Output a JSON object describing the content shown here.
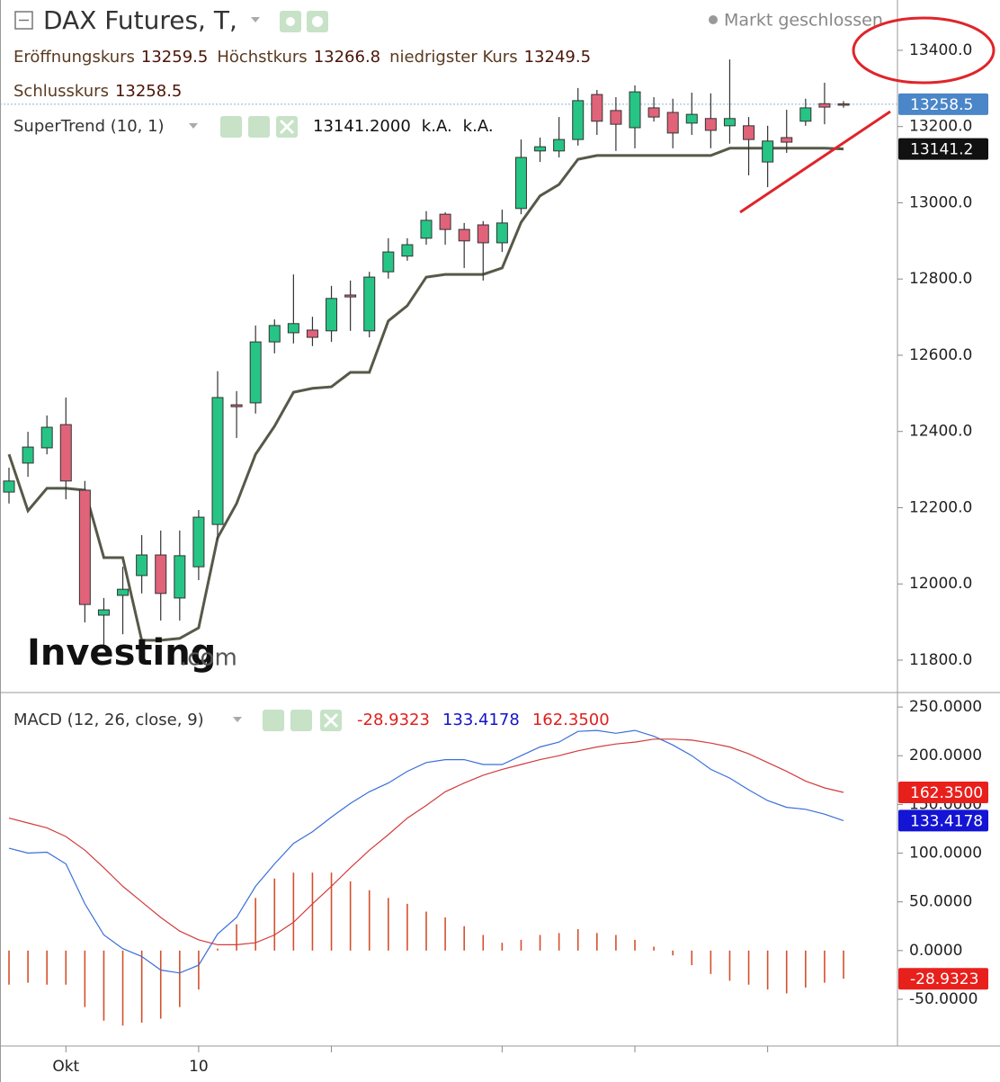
{
  "chart_data": [
    {
      "type": "candlestick",
      "title": "DAX Futures, T,",
      "status": "Markt geschlossen",
      "ohlc_legend": [
        {
          "label": "Eröffnungskurs",
          "value": 13259.5
        },
        {
          "label": "Höchstkurs",
          "value": 13266.8
        },
        {
          "label": "niedrigster Kurs",
          "value": 13249.5
        },
        {
          "label": "Schlusskurs",
          "value": 13258.5
        }
      ],
      "watermark": [
        "Investing",
        ".com"
      ],
      "categories": [
        null,
        null,
        null,
        "Okt",
        null,
        null,
        null,
        null,
        null,
        null,
        "10",
        null,
        null,
        null,
        null,
        null,
        null,
        null,
        null,
        null,
        null,
        null,
        null,
        null,
        null,
        null,
        null,
        null,
        null,
        null,
        null,
        null,
        null,
        null,
        null,
        null,
        null,
        null,
        null,
        null,
        null,
        null,
        null,
        null,
        null
      ],
      "xticks": [
        3,
        10,
        17,
        26,
        33,
        40
      ],
      "open": [
        12241,
        12317,
        12357,
        12418,
        12246,
        11918,
        11970,
        12022,
        12076,
        11963,
        12045,
        12156,
        12470,
        12475,
        12635,
        12659,
        12666,
        12664,
        12758,
        12664,
        12819,
        12860,
        12907,
        12970,
        12930,
        12942,
        12895,
        12985,
        13136,
        13136,
        13166,
        13284,
        13242,
        13197,
        13249,
        13237,
        13209,
        13221,
        13202,
        13202,
        13107,
        13171,
        13214,
        13260,
        13259.5
      ],
      "high": [
        12305,
        12399,
        12442,
        12489,
        12270,
        11963,
        12045,
        12128,
        12140,
        12140,
        12194,
        12558,
        12506,
        12678,
        12694,
        12812,
        12701,
        12782,
        12796,
        12819,
        12907,
        12907,
        12978,
        12975,
        12947,
        12952,
        12982,
        13166,
        13171,
        13225,
        13301,
        13296,
        13277,
        13308,
        13277,
        13273,
        13289,
        13287,
        13376,
        13225,
        13202,
        13244,
        13273,
        13315,
        13266.8
      ],
      "low": [
        12211,
        12281,
        12340,
        12222,
        11899,
        11838,
        11868,
        11975,
        11904,
        11904,
        12010,
        12116,
        12383,
        12447,
        12605,
        12631,
        12624,
        12635,
        12664,
        12647,
        12801,
        12848,
        12890,
        12890,
        12829,
        12796,
        12871,
        12970,
        13107,
        13119,
        13150,
        13178,
        13136,
        13143,
        13213,
        13143,
        13178,
        13143,
        13155,
        13072,
        13041,
        13131,
        13202,
        13206,
        13249.5
      ],
      "close": [
        12270,
        12359,
        12411,
        12270,
        11946,
        11932,
        11986,
        12076,
        11975,
        12074,
        12175,
        12489,
        12465,
        12635,
        12678,
        12683,
        12647,
        12749,
        12753,
        12805,
        12871,
        12890,
        12954,
        12930,
        12900,
        12895,
        12947,
        13119,
        13147,
        13166,
        13268,
        13214,
        13206,
        13291,
        13225,
        13183,
        13232,
        13190,
        13221,
        13166,
        13162,
        13159,
        13249,
        13251,
        13258.5
      ],
      "up_color": "#26c485",
      "down_color": "#e0637a",
      "series": [
        {
          "name": "SuperTrend (10, 1)",
          "color": "#555a48",
          "legend_values": [
            "13141.2000",
            "k.A.",
            "k.A."
          ],
          "values": [
            12340,
            12192,
            12251,
            12251,
            12246,
            12069,
            12069,
            11852,
            11852,
            11857,
            11885,
            12121,
            12211,
            12340,
            12414,
            12503,
            12513,
            12517,
            12555,
            12555,
            12690,
            12730,
            12805,
            12812,
            12812,
            12812,
            12829,
            12949,
            13018,
            13048,
            13114,
            13124,
            13124,
            13124,
            13124,
            13124,
            13124,
            13124,
            13143,
            13143,
            13143,
            13143,
            13143,
            13143,
            13141.2
          ]
        }
      ],
      "ylim": [
        11715,
        13532
      ],
      "yticks": [
        {
          "value": 11800,
          "label": "11800.0"
        },
        {
          "value": 12000,
          "label": "12000.0"
        },
        {
          "value": 12200,
          "label": "12200.0"
        },
        {
          "value": 12400,
          "label": "12400.0"
        },
        {
          "value": 12600,
          "label": "12600.0"
        },
        {
          "value": 12800,
          "label": "12800.0"
        },
        {
          "value": 13000,
          "label": "13000.0"
        },
        {
          "value": 13200,
          "label": "13200.0"
        },
        {
          "value": 13400,
          "label": "13400.0"
        }
      ]
    },
    {
      "type": "macd",
      "title": "MACD (12, 26, close, 9)",
      "series": [
        {
          "type": "bar",
          "color": "#d4502c",
          "legend_value": "-28.9323",
          "values": [
            -35,
            -33,
            -35,
            -35,
            -58,
            -72,
            -77,
            -74,
            -70,
            -58,
            -40,
            2,
            27,
            54,
            74,
            80,
            80,
            80,
            71,
            62,
            54,
            48,
            40,
            34,
            25,
            16,
            8,
            11,
            16,
            18,
            22,
            18,
            16,
            11,
            4,
            -5,
            -15,
            -24,
            -31,
            -35,
            -40,
            -44,
            -38,
            -33,
            -28.9323
          ]
        },
        {
          "type": "line",
          "color": "#3a6fd8",
          "legend_value": "133.4178",
          "values": [
            105,
            100,
            101,
            89,
            48,
            16,
            2,
            -6,
            -20,
            -23,
            -15,
            17,
            34,
            66,
            89,
            110,
            122,
            137,
            151,
            163,
            172,
            184,
            193,
            196,
            196,
            191,
            191,
            200,
            209,
            214,
            225,
            226,
            223,
            226,
            220,
            211,
            200,
            186,
            177,
            165,
            154,
            147,
            145,
            140,
            133.4178
          ]
        },
        {
          "type": "line",
          "color": "#d23c3c",
          "legend_value": "162.3500",
          "values": [
            136,
            131,
            126,
            117,
            103,
            85,
            66,
            50,
            34,
            20,
            11,
            6,
            6,
            8,
            16,
            29,
            48,
            66,
            85,
            103,
            119,
            136,
            149,
            163,
            172,
            180,
            186,
            191,
            196,
            200,
            205,
            209,
            212,
            214,
            217,
            217,
            216,
            213,
            209,
            202,
            193,
            184,
            174,
            167,
            162.35
          ]
        }
      ],
      "ylim": [
        -98,
        263
      ],
      "yticks": [
        {
          "value": -50,
          "label": "-50.0000"
        },
        {
          "value": 0,
          "label": "0.0000"
        },
        {
          "value": 50,
          "label": "50.0000"
        },
        {
          "value": 100,
          "label": "100.0000"
        },
        {
          "value": 150,
          "label": "150.0000"
        },
        {
          "value": 200,
          "label": "200.0000"
        },
        {
          "value": 250,
          "label": "250.0000"
        }
      ]
    }
  ]
}
